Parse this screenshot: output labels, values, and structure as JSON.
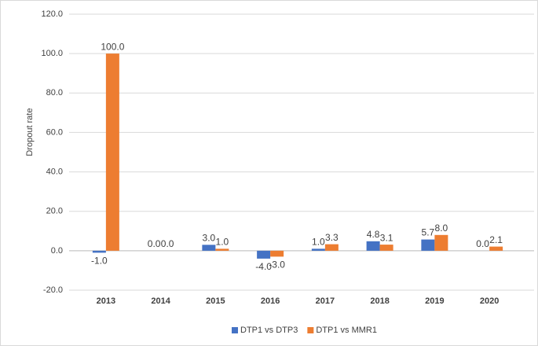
{
  "chart_data": {
    "type": "bar",
    "y_label": "Dropout rate",
    "categories": [
      "2013",
      "2014",
      "2015",
      "2016",
      "2017",
      "2018",
      "2019",
      "2020"
    ],
    "series": [
      {
        "name": "DTP1 vs DTP3",
        "color": "#4472c4",
        "values": [
          -1.0,
          0.0,
          3.0,
          -4.0,
          1.0,
          4.8,
          5.7,
          0.0
        ],
        "value_labels": [
          "-1.0",
          "0.0",
          "3.0",
          "-4.0",
          "1.0",
          "4.8",
          "5.7",
          "0.0"
        ]
      },
      {
        "name": "DTP1 vs MMR1",
        "color": "#ed7d31",
        "values": [
          100.0,
          0.0,
          1.0,
          -3.0,
          3.3,
          3.1,
          8.0,
          2.1
        ],
        "value_labels": [
          "100.0",
          "0.0",
          "1.0",
          "-3.0",
          "3.3",
          "3.1",
          "8.0",
          "2.1"
        ]
      }
    ],
    "ylim": [
      -20,
      120
    ],
    "yticks": [
      {
        "value": -20,
        "label": "-20.0"
      },
      {
        "value": 0,
        "label": "0.0"
      },
      {
        "value": 20,
        "label": "20.0"
      },
      {
        "value": 40,
        "label": "40.0"
      },
      {
        "value": 60,
        "label": "60.0"
      },
      {
        "value": 80,
        "label": "80.0"
      },
      {
        "value": 100,
        "label": "100.0"
      },
      {
        "value": 120,
        "label": "120.0"
      }
    ],
    "grid": true,
    "legend": "bottom"
  }
}
